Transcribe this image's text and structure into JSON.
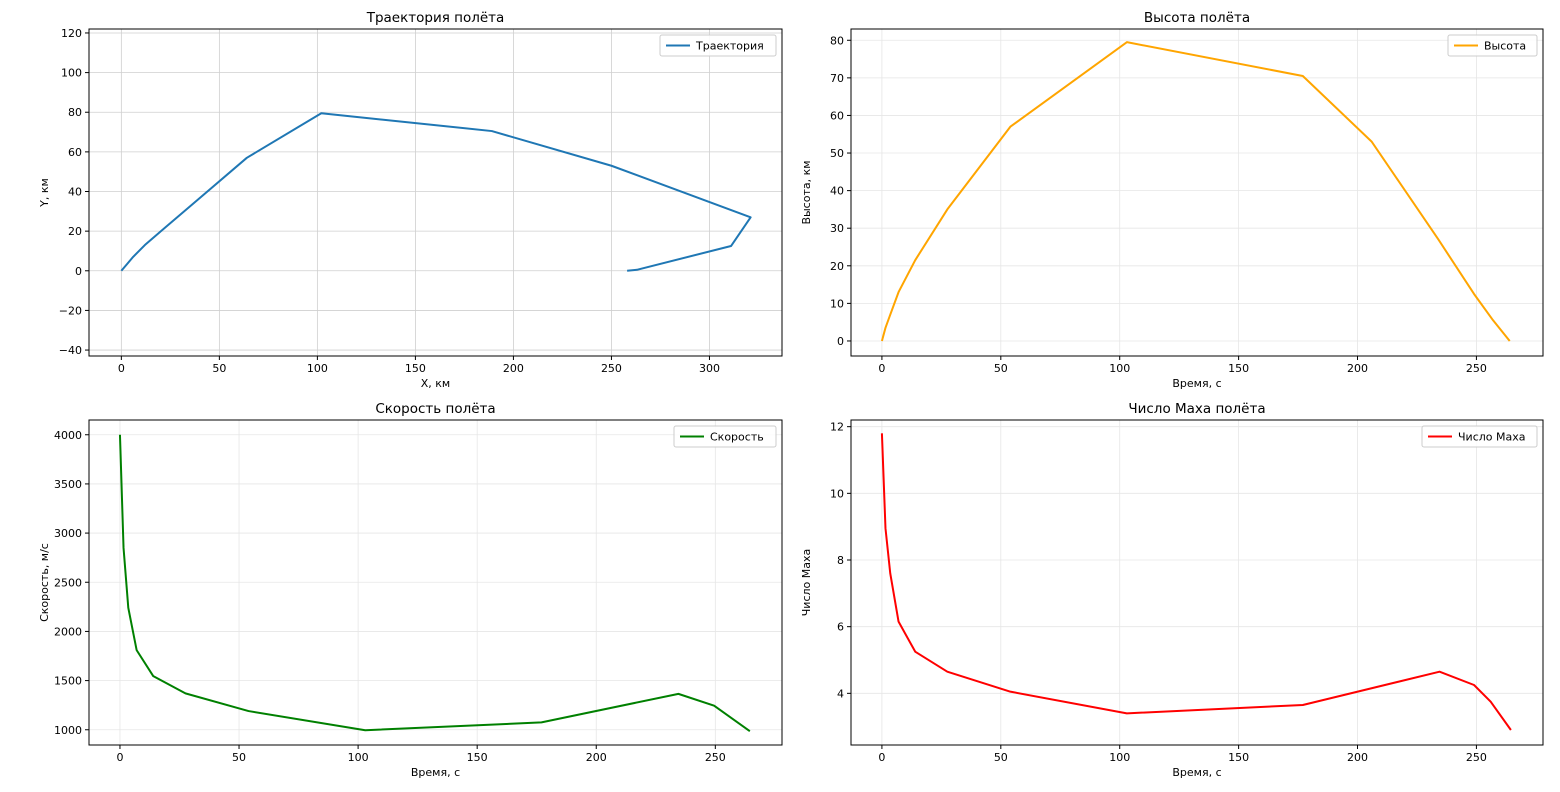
{
  "figure": {
    "charts": [
      {
        "title": "Траектория полёта",
        "xlabel": "X, км",
        "ylabel": "Y, км",
        "legend": "Траектория"
      },
      {
        "title": "Высота полёта",
        "xlabel": "Время, с",
        "ylabel": "Высота, км",
        "legend": "Высота"
      },
      {
        "title": "Скорость полёта",
        "xlabel": "Время, с",
        "ylabel": "Скорость, м/с",
        "legend": "Скорость"
      },
      {
        "title": "Число Маха полёта",
        "xlabel": "Время, с",
        "ylabel": "Число Маха",
        "legend": "Число Маха"
      }
    ]
  },
  "chart_data": [
    {
      "type": "line",
      "title": "Траектория полёта",
      "xlabel": "X, км",
      "ylabel": "Y, км",
      "xlim": [
        -16.5,
        337
      ],
      "ylim": [
        -43,
        122
      ],
      "xticks": [
        0,
        50,
        100,
        150,
        200,
        250,
        300
      ],
      "yticks": [
        -40,
        -20,
        0,
        20,
        40,
        60,
        80,
        100,
        120
      ],
      "grid": true,
      "legend_position": "top-right",
      "color": "#1f77b4",
      "series": [
        {
          "name": "Траектория",
          "x": [
            0,
            3,
            6,
            12,
            22,
            38,
            64,
            102,
            189,
            250,
            321,
            311,
            263,
            258
          ],
          "y": [
            0,
            3.5,
            7,
            13,
            21.5,
            35,
            57,
            79.5,
            70.5,
            53,
            27,
            12.5,
            0.5,
            0
          ]
        }
      ]
    },
    {
      "type": "line",
      "title": "Высота полёта",
      "xlabel": "Время, с",
      "ylabel": "Высота, км",
      "xlim": [
        -13,
        278
      ],
      "ylim": [
        -4,
        83
      ],
      "xticks": [
        0,
        50,
        100,
        150,
        200,
        250
      ],
      "yticks": [
        0,
        10,
        20,
        30,
        40,
        50,
        60,
        70,
        80
      ],
      "grid": true,
      "legend_position": "top-right",
      "color": "#ffa500",
      "series": [
        {
          "name": "Высота",
          "x": [
            0,
            1.5,
            3.5,
            7,
            14,
            27.5,
            54,
            103,
            177,
            206,
            234,
            249,
            257,
            264
          ],
          "y": [
            0,
            3.5,
            7,
            13,
            21.5,
            35,
            57,
            79.5,
            70.5,
            53,
            27,
            12.5,
            5.5,
            0
          ]
        }
      ]
    },
    {
      "type": "line",
      "title": "Скорость полёта",
      "xlabel": "Время, с",
      "ylabel": "Скорость, м/с",
      "xlim": [
        -13,
        278
      ],
      "ylim": [
        845,
        4150
      ],
      "xticks": [
        0,
        50,
        100,
        150,
        200,
        250
      ],
      "yticks": [
        1000,
        1500,
        2000,
        2500,
        3000,
        3500,
        4000
      ],
      "grid": true,
      "legend_position": "top-right",
      "color": "#008000",
      "series": [
        {
          "name": "Скорость",
          "x": [
            0,
            1.5,
            3.5,
            7,
            14,
            27.5,
            54,
            103,
            177,
            234.5,
            249.5,
            264.5
          ],
          "y": [
            4000,
            2850,
            2240,
            1810,
            1545,
            1370,
            1190,
            995,
            1075,
            1365,
            1245,
            985
          ]
        }
      ]
    },
    {
      "type": "line",
      "title": "Число Маха полёта",
      "xlabel": "Время, с",
      "ylabel": "Число Маха",
      "xlim": [
        -13,
        278
      ],
      "ylim": [
        2.45,
        12.2
      ],
      "xticks": [
        0,
        50,
        100,
        150,
        200,
        250
      ],
      "yticks": [
        4,
        6,
        8,
        10,
        12
      ],
      "grid": true,
      "legend_position": "top-right",
      "color": "#ff0000",
      "series": [
        {
          "name": "Число Маха",
          "x": [
            0,
            1.5,
            3.5,
            7,
            14,
            27.5,
            54,
            103,
            177,
            234.5,
            249,
            256,
            264.5
          ],
          "y": [
            11.8,
            8.95,
            7.6,
            6.15,
            5.25,
            4.65,
            4.05,
            3.4,
            3.65,
            4.65,
            4.25,
            3.75,
            2.9
          ]
        }
      ]
    }
  ]
}
